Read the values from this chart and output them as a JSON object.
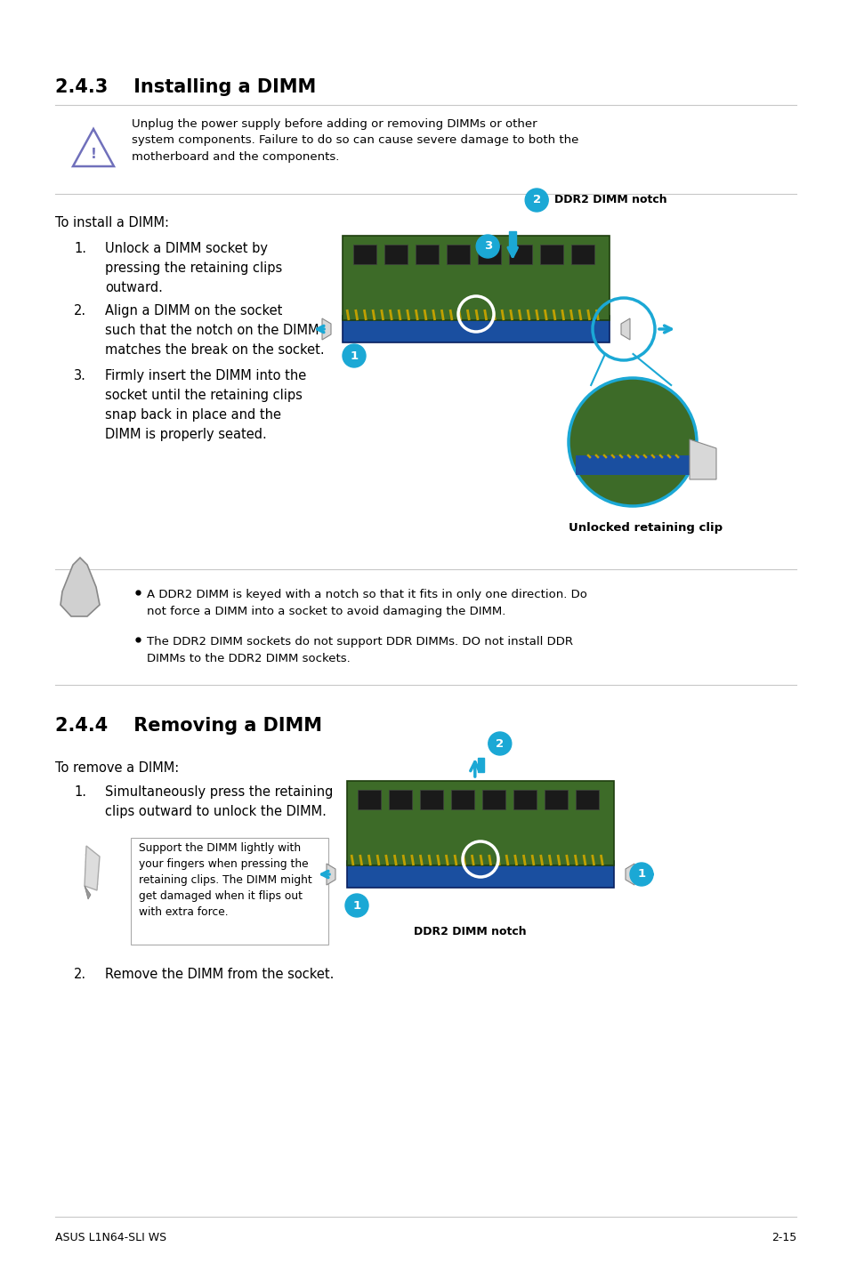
{
  "bg_color": "#ffffff",
  "title_243": "2.4.3    Installing a DIMM",
  "title_244": "2.4.4    Removing a DIMM",
  "warning_text": "Unplug the power supply before adding or removing DIMMs or other\nsystem components. Failure to do so can cause severe damage to both the\nmotherboard and the components.",
  "install_intro": "To install a DIMM:",
  "install_steps": [
    "Unlock a DIMM socket by\npressing the retaining clips\noutward.",
    "Align a DIMM on the socket\nsuch that the notch on the DIMM\nmatches the break on the socket.",
    "Firmly insert the DIMM into the\nsocket until the retaining clips\nsnap back in place and the\nDIMM is properly seated."
  ],
  "remove_intro": "To remove a DIMM:",
  "remove_step1": "Simultaneously press the retaining\nclips outward to unlock the DIMM.",
  "remove_step2": "Remove the DIMM from the socket.",
  "note_bullets": [
    "A DDR2 DIMM is keyed with a notch so that it fits in only one direction. Do\nnot force a DIMM into a socket to avoid damaging the DIMM.",
    "The DDR2 DIMM sockets do not support DDR DIMMs. DO not install DDR\nDIMMs to the DDR2 DIMM sockets."
  ],
  "note_box_text": "Support the DIMM lightly with\nyour fingers when pressing the\nretaining clips. The DIMM might\nget damaged when it flips out\nwith extra force.",
  "ddr2_label": "DDR2 DIMM notch",
  "unlocked_label": "Unlocked retaining clip",
  "footer_left": "ASUS L1N64-SLI WS",
  "footer_right": "2-15",
  "accent": "#1ba8d5",
  "black": "#000000",
  "gray_line": "#c8c8c8",
  "dimm_green": "#3d6b28",
  "socket_blue": "#1a4fa0",
  "gold": "#c0a000",
  "chip_dark": "#1a1a1a",
  "warn_purple": "#7070bb",
  "note_gray": "#bbbbbb"
}
